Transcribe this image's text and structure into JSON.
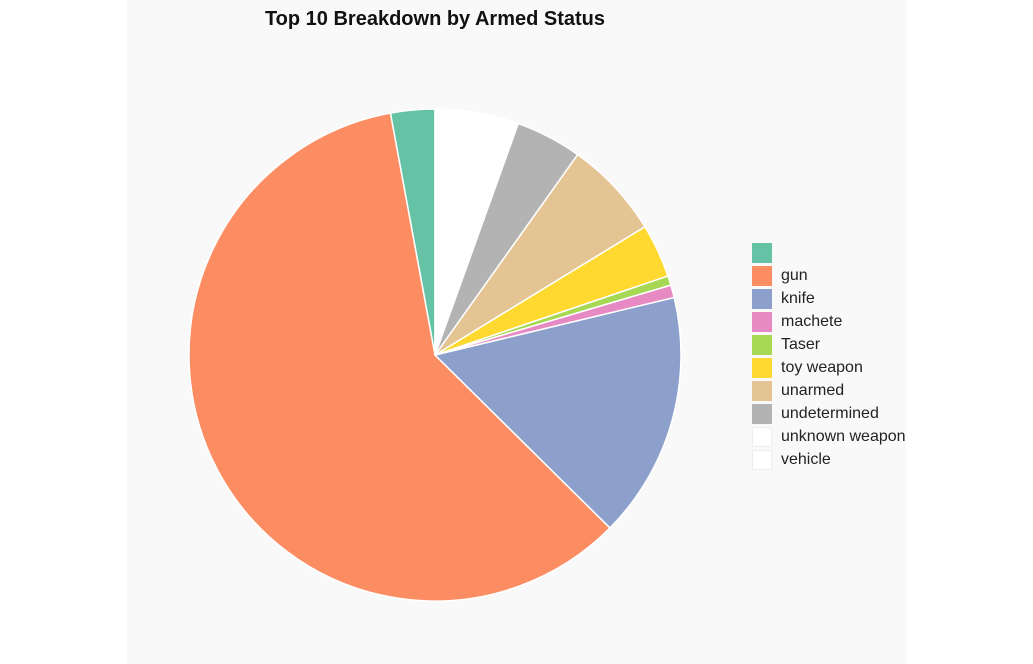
{
  "chart_data": {
    "type": "pie",
    "title": "Top 10 Breakdown by Armed Status",
    "categories": [
      "",
      "gun",
      "knife",
      "machete",
      "Taser",
      "toy weapon",
      "unarmed",
      "undetermined",
      "unknown weapon",
      "vehicle"
    ],
    "values": [
      2.8,
      57.6,
      15.6,
      0.8,
      0.6,
      3.4,
      6.2,
      4.2,
      1.6,
      3.7
    ],
    "colors": [
      "#66c2a5",
      "#fc8d62",
      "#8da0cb",
      "#e78ac3",
      "#a6d854",
      "#ffd92f",
      "#e5c494",
      "#b3b3b3",
      "#ffffff",
      "#ffffff"
    ],
    "start_angle_deg": 0,
    "direction": "counterclockwise",
    "legend_position": "right"
  }
}
